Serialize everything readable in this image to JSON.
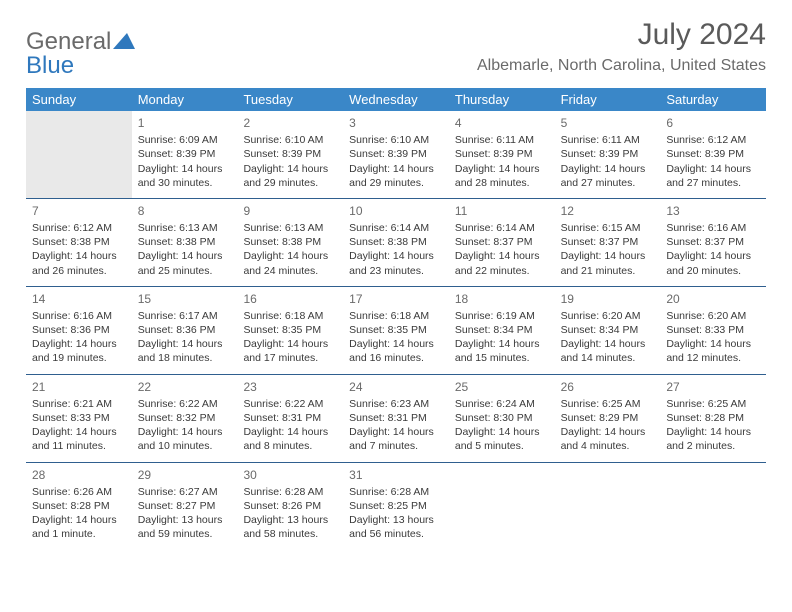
{
  "brand": {
    "part1": "General",
    "part2": "Blue"
  },
  "title": {
    "month": "July 2024",
    "location": "Albemarle, North Carolina, United States"
  },
  "colors": {
    "headerBg": "#3a87c8",
    "headerText": "#ffffff",
    "rowBorder": "#2f5f8f",
    "bodyText": "#3a3a3a",
    "muted": "#6a6a6a",
    "outsideBg": "#e9e9e9",
    "brandBlue": "#2f78bd"
  },
  "dayNames": [
    "Sunday",
    "Monday",
    "Tuesday",
    "Wednesday",
    "Thursday",
    "Friday",
    "Saturday"
  ],
  "weeks": [
    [
      {
        "outside": true
      },
      {
        "day": "1",
        "sunrise": "Sunrise: 6:09 AM",
        "sunset": "Sunset: 8:39 PM",
        "dl1": "Daylight: 14 hours",
        "dl2": "and 30 minutes."
      },
      {
        "day": "2",
        "sunrise": "Sunrise: 6:10 AM",
        "sunset": "Sunset: 8:39 PM",
        "dl1": "Daylight: 14 hours",
        "dl2": "and 29 minutes."
      },
      {
        "day": "3",
        "sunrise": "Sunrise: 6:10 AM",
        "sunset": "Sunset: 8:39 PM",
        "dl1": "Daylight: 14 hours",
        "dl2": "and 29 minutes."
      },
      {
        "day": "4",
        "sunrise": "Sunrise: 6:11 AM",
        "sunset": "Sunset: 8:39 PM",
        "dl1": "Daylight: 14 hours",
        "dl2": "and 28 minutes."
      },
      {
        "day": "5",
        "sunrise": "Sunrise: 6:11 AM",
        "sunset": "Sunset: 8:39 PM",
        "dl1": "Daylight: 14 hours",
        "dl2": "and 27 minutes."
      },
      {
        "day": "6",
        "sunrise": "Sunrise: 6:12 AM",
        "sunset": "Sunset: 8:39 PM",
        "dl1": "Daylight: 14 hours",
        "dl2": "and 27 minutes."
      }
    ],
    [
      {
        "day": "7",
        "sunrise": "Sunrise: 6:12 AM",
        "sunset": "Sunset: 8:38 PM",
        "dl1": "Daylight: 14 hours",
        "dl2": "and 26 minutes."
      },
      {
        "day": "8",
        "sunrise": "Sunrise: 6:13 AM",
        "sunset": "Sunset: 8:38 PM",
        "dl1": "Daylight: 14 hours",
        "dl2": "and 25 minutes."
      },
      {
        "day": "9",
        "sunrise": "Sunrise: 6:13 AM",
        "sunset": "Sunset: 8:38 PM",
        "dl1": "Daylight: 14 hours",
        "dl2": "and 24 minutes."
      },
      {
        "day": "10",
        "sunrise": "Sunrise: 6:14 AM",
        "sunset": "Sunset: 8:38 PM",
        "dl1": "Daylight: 14 hours",
        "dl2": "and 23 minutes."
      },
      {
        "day": "11",
        "sunrise": "Sunrise: 6:14 AM",
        "sunset": "Sunset: 8:37 PM",
        "dl1": "Daylight: 14 hours",
        "dl2": "and 22 minutes."
      },
      {
        "day": "12",
        "sunrise": "Sunrise: 6:15 AM",
        "sunset": "Sunset: 8:37 PM",
        "dl1": "Daylight: 14 hours",
        "dl2": "and 21 minutes."
      },
      {
        "day": "13",
        "sunrise": "Sunrise: 6:16 AM",
        "sunset": "Sunset: 8:37 PM",
        "dl1": "Daylight: 14 hours",
        "dl2": "and 20 minutes."
      }
    ],
    [
      {
        "day": "14",
        "sunrise": "Sunrise: 6:16 AM",
        "sunset": "Sunset: 8:36 PM",
        "dl1": "Daylight: 14 hours",
        "dl2": "and 19 minutes."
      },
      {
        "day": "15",
        "sunrise": "Sunrise: 6:17 AM",
        "sunset": "Sunset: 8:36 PM",
        "dl1": "Daylight: 14 hours",
        "dl2": "and 18 minutes."
      },
      {
        "day": "16",
        "sunrise": "Sunrise: 6:18 AM",
        "sunset": "Sunset: 8:35 PM",
        "dl1": "Daylight: 14 hours",
        "dl2": "and 17 minutes."
      },
      {
        "day": "17",
        "sunrise": "Sunrise: 6:18 AM",
        "sunset": "Sunset: 8:35 PM",
        "dl1": "Daylight: 14 hours",
        "dl2": "and 16 minutes."
      },
      {
        "day": "18",
        "sunrise": "Sunrise: 6:19 AM",
        "sunset": "Sunset: 8:34 PM",
        "dl1": "Daylight: 14 hours",
        "dl2": "and 15 minutes."
      },
      {
        "day": "19",
        "sunrise": "Sunrise: 6:20 AM",
        "sunset": "Sunset: 8:34 PM",
        "dl1": "Daylight: 14 hours",
        "dl2": "and 14 minutes."
      },
      {
        "day": "20",
        "sunrise": "Sunrise: 6:20 AM",
        "sunset": "Sunset: 8:33 PM",
        "dl1": "Daylight: 14 hours",
        "dl2": "and 12 minutes."
      }
    ],
    [
      {
        "day": "21",
        "sunrise": "Sunrise: 6:21 AM",
        "sunset": "Sunset: 8:33 PM",
        "dl1": "Daylight: 14 hours",
        "dl2": "and 11 minutes."
      },
      {
        "day": "22",
        "sunrise": "Sunrise: 6:22 AM",
        "sunset": "Sunset: 8:32 PM",
        "dl1": "Daylight: 14 hours",
        "dl2": "and 10 minutes."
      },
      {
        "day": "23",
        "sunrise": "Sunrise: 6:22 AM",
        "sunset": "Sunset: 8:31 PM",
        "dl1": "Daylight: 14 hours",
        "dl2": "and 8 minutes."
      },
      {
        "day": "24",
        "sunrise": "Sunrise: 6:23 AM",
        "sunset": "Sunset: 8:31 PM",
        "dl1": "Daylight: 14 hours",
        "dl2": "and 7 minutes."
      },
      {
        "day": "25",
        "sunrise": "Sunrise: 6:24 AM",
        "sunset": "Sunset: 8:30 PM",
        "dl1": "Daylight: 14 hours",
        "dl2": "and 5 minutes."
      },
      {
        "day": "26",
        "sunrise": "Sunrise: 6:25 AM",
        "sunset": "Sunset: 8:29 PM",
        "dl1": "Daylight: 14 hours",
        "dl2": "and 4 minutes."
      },
      {
        "day": "27",
        "sunrise": "Sunrise: 6:25 AM",
        "sunset": "Sunset: 8:28 PM",
        "dl1": "Daylight: 14 hours",
        "dl2": "and 2 minutes."
      }
    ],
    [
      {
        "day": "28",
        "sunrise": "Sunrise: 6:26 AM",
        "sunset": "Sunset: 8:28 PM",
        "dl1": "Daylight: 14 hours",
        "dl2": "and 1 minute."
      },
      {
        "day": "29",
        "sunrise": "Sunrise: 6:27 AM",
        "sunset": "Sunset: 8:27 PM",
        "dl1": "Daylight: 13 hours",
        "dl2": "and 59 minutes."
      },
      {
        "day": "30",
        "sunrise": "Sunrise: 6:28 AM",
        "sunset": "Sunset: 8:26 PM",
        "dl1": "Daylight: 13 hours",
        "dl2": "and 58 minutes."
      },
      {
        "day": "31",
        "sunrise": "Sunrise: 6:28 AM",
        "sunset": "Sunset: 8:25 PM",
        "dl1": "Daylight: 13 hours",
        "dl2": "and 56 minutes."
      },
      {
        "blank": true
      },
      {
        "blank": true
      },
      {
        "blank": true
      }
    ]
  ]
}
